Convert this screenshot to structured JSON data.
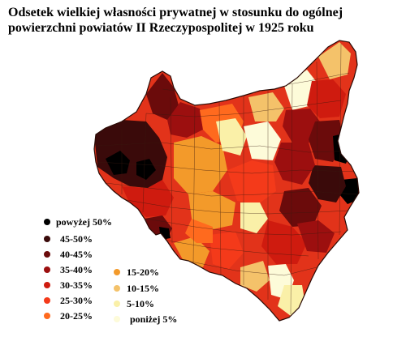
{
  "title": {
    "line1": "Odsetek wielkiej własności prywatnej w stosunku do ogólnej",
    "line2": "powierzchni powiatów II Rzeczypospolitej w 1925 roku"
  },
  "legend": {
    "items": [
      {
        "label": "powyżej 50%",
        "color": "#000000"
      },
      {
        "label": "45-50%",
        "color": "#3a0a0a"
      },
      {
        "label": "40-45%",
        "color": "#6b0b0b"
      },
      {
        "label": "35-40%",
        "color": "#9c0f0f"
      },
      {
        "label": "30-35%",
        "color": "#cf1b0f"
      },
      {
        "label": "25-30%",
        "color": "#f43a1a"
      },
      {
        "label": "20-25%",
        "color": "#ff6a1e"
      },
      {
        "label": "15-20%",
        "color": "#f39a2a"
      },
      {
        "label": "10-15%",
        "color": "#f4c26a"
      },
      {
        "label": "5-10%",
        "color": "#faf0a8"
      },
      {
        "label": "poniżej 5%",
        "color": "#fdfbd9"
      }
    ]
  },
  "colors": {
    "black": "#000000",
    "dark_brown": "#3a0a0a",
    "maroon": "#6b0b0b",
    "dark_red": "#9c0f0f",
    "red": "#cf1b0f",
    "bright_red": "#f43a1a",
    "orange_red": "#ff6a1e",
    "orange": "#f39a2a",
    "light_orange": "#f4c26a",
    "pale_yellow": "#faf0a8",
    "cream": "#fdfbd9",
    "border": "#3a1a10"
  }
}
